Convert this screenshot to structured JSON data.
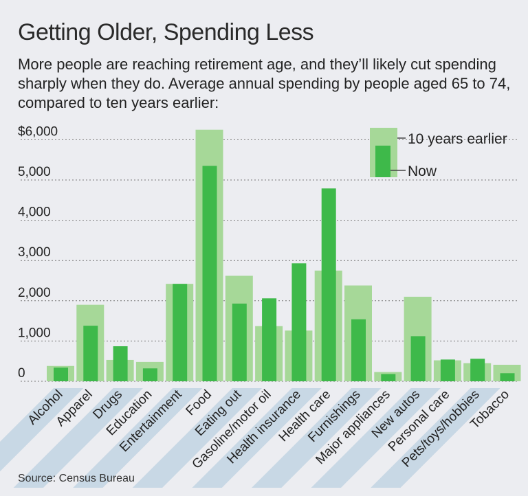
{
  "title": "Getting Older, Spending Less",
  "subtitle": "More people are reaching retirement age, and they’ll likely cut spending sharply when they do. Average annual spending by people aged 65 to 74, compared to ten years earlier:",
  "source": "Source: Census Bureau",
  "colors": {
    "earlier": "#a6d898",
    "now": "#3eb94a",
    "stripe": "#bcd0e0",
    "background": "#ecedf1"
  },
  "chart_data": {
    "type": "bar",
    "categories": [
      "Alcohol",
      "Apparel",
      "Drugs",
      "Education",
      "Entertainment",
      "Food",
      "Eating out",
      "Gasoline/motor oil",
      "Health insurance",
      "Health care",
      "Furnishings",
      "Major appliances",
      "New autos",
      "Personal care",
      "Pets/toys/hobbies",
      "Tobacco"
    ],
    "series": [
      {
        "name": "10 years earlier",
        "values": [
          380,
          1900,
          530,
          480,
          2420,
          6250,
          2620,
          1370,
          1260,
          2750,
          2380,
          230,
          2100,
          520,
          450,
          410
        ]
      },
      {
        "name": "Now",
        "values": [
          340,
          1380,
          870,
          320,
          2420,
          5350,
          1930,
          2060,
          2930,
          4790,
          1540,
          180,
          1120,
          540,
          560,
          200
        ]
      }
    ],
    "yticks": [
      "0",
      "1,000",
      "2,000",
      "3,000",
      "4,000",
      "5,000",
      "$6,000"
    ],
    "ylim": [
      0,
      6500
    ],
    "legend": "top-right",
    "grid": true
  }
}
